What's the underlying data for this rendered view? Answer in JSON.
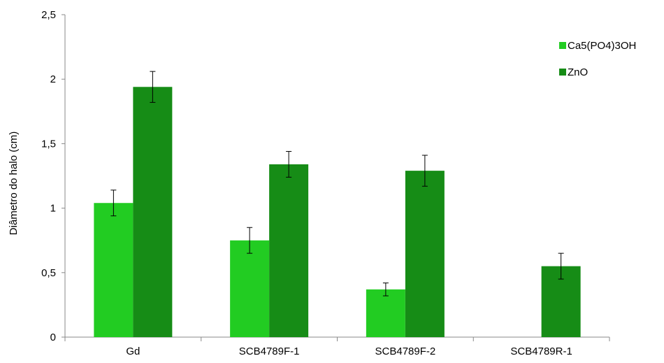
{
  "chart_data": {
    "type": "bar",
    "categories": [
      "Gd",
      "SCB4789F-1",
      "SCB4789F-2",
      "SCB4789R-1"
    ],
    "series": [
      {
        "name": "Ca5(PO4)3OH",
        "color": "#22cc22",
        "values": [
          1.04,
          0.75,
          0.37,
          0
        ],
        "errors": [
          0.1,
          0.1,
          0.05,
          0
        ]
      },
      {
        "name": "ZnO",
        "color": "#168c16",
        "values": [
          1.94,
          1.34,
          1.29,
          0.55
        ],
        "errors": [
          0.12,
          0.1,
          0.12,
          0.1
        ]
      }
    ],
    "ylabel": "Diâmetro do halo (cm)",
    "xlabel": "",
    "ylim": [
      0,
      2.5
    ],
    "yticks": [
      "0",
      "0,5",
      "1",
      "1,5",
      "2",
      "2,5"
    ],
    "ytick_values": [
      0,
      0.5,
      1,
      1.5,
      2,
      2.5
    ],
    "grid": false,
    "legend_position": "top-right"
  }
}
